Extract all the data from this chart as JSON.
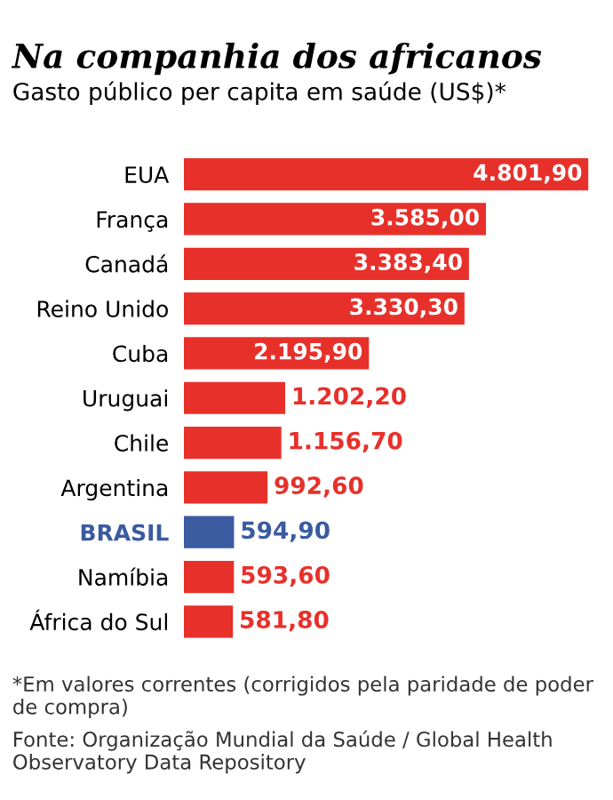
{
  "chart_data": {
    "type": "bar",
    "orientation": "horizontal",
    "title": "Na companhia dos africanos",
    "subtitle": "Gasto público per capita em saúde (US$)*",
    "categories": [
      "EUA",
      "França",
      "Canadá",
      "Reino Unido",
      "Cuba",
      "Uruguai",
      "Chile",
      "Argentina",
      "BRASIL",
      "Namíbia",
      "África do Sul"
    ],
    "values": [
      4801.9,
      3585.0,
      3383.4,
      3330.3,
      2195.9,
      1202.2,
      1156.7,
      992.6,
      594.9,
      593.6,
      581.8
    ],
    "value_labels": [
      "4.801,90",
      "3.585,00",
      "3.383,40",
      "3.330,30",
      "2.195,90",
      "1.202,20",
      "1.156,70",
      "992,60",
      "594,90",
      "593,60",
      "581,80"
    ],
    "colors": [
      "#e8302a",
      "#e8302a",
      "#e8302a",
      "#e8302a",
      "#e8302a",
      "#e8302a",
      "#e8302a",
      "#e8302a",
      "#3b5ba0",
      "#e8302a",
      "#e8302a"
    ],
    "grid": false,
    "legend": false,
    "annotations": [
      "*Em valores correntes (corrigidos pela paridade de poder de compra)",
      "Fonte: Organização Mundial da Saúde / Global Health Observatory Data Repository"
    ]
  }
}
